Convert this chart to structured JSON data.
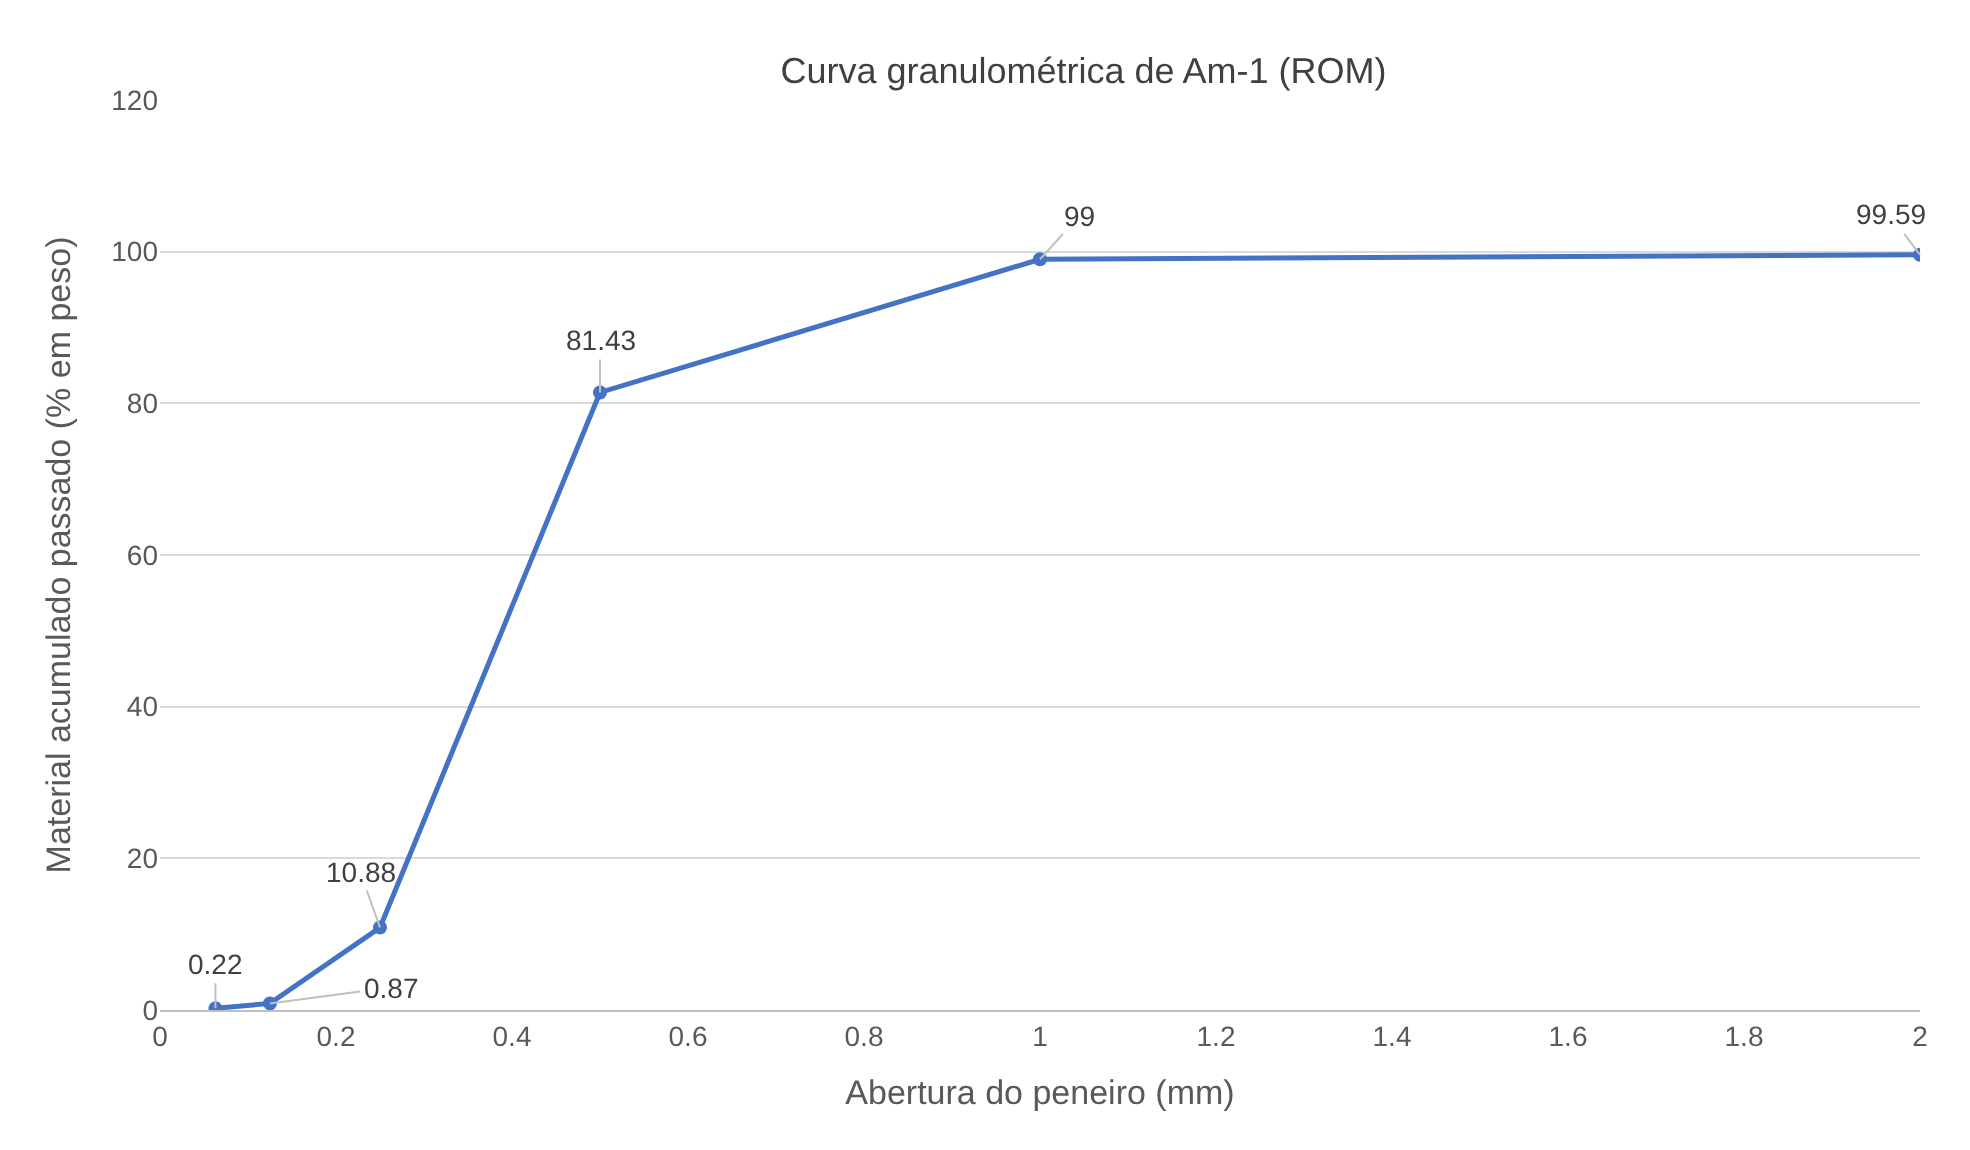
{
  "chart_data": {
    "type": "line",
    "title": "Curva granulométrica de Am-1 (ROM)",
    "xlabel": "Abertura do peneiro (mm)",
    "ylabel": "Material acumulado passado (% em peso)",
    "x": [
      0.063,
      0.125,
      0.25,
      0.5,
      1,
      2
    ],
    "series": [
      {
        "color": "#4472c4",
        "values": [
          0.22,
          0.87,
          10.88,
          81.43,
          99,
          99.59
        ]
      }
    ],
    "xlim": [
      0,
      2
    ],
    "xticks": [
      0,
      0.2,
      0.4,
      0.6,
      0.8,
      1,
      1.2,
      1.4,
      1.6,
      1.8,
      2
    ],
    "ylim": [
      0,
      120
    ],
    "yticks": [
      0,
      20,
      40,
      60,
      80,
      100,
      120
    ],
    "grid": "y",
    "marker": "circle",
    "line_style": "solid",
    "data_labels": true
  }
}
